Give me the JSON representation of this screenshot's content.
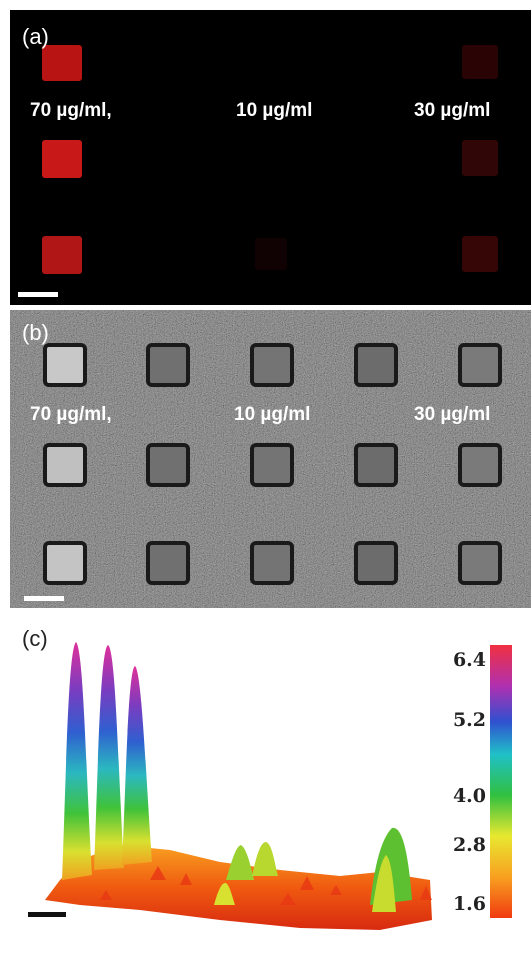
{
  "panels": [
    {
      "label": "(a)",
      "concentrations": [
        "70 µg/ml,",
        "10 µg/ml",
        "30 µg/ml"
      ]
    },
    {
      "label": "(b)",
      "concentrations": [
        "70 µg/ml,",
        "10 µg/ml",
        "30 µg/ml"
      ]
    },
    {
      "label": "(c)",
      "colorbar_ticks": [
        "6.4",
        "5.2",
        "4.0",
        "2.8",
        "1.6"
      ]
    }
  ]
}
